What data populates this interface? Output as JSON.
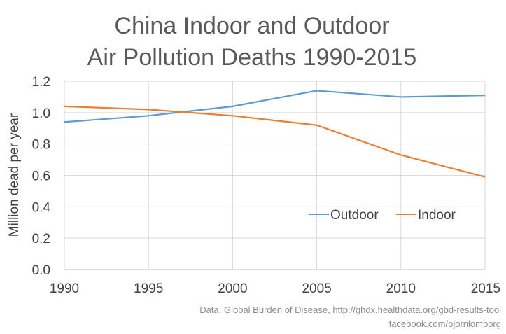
{
  "chart_data": {
    "type": "line",
    "title": [
      "China Indoor and Outdoor",
      "Air Pollution Deaths 1990-2015"
    ],
    "xlabel": "",
    "ylabel": "Million dead per year",
    "x": [
      1990,
      1995,
      2000,
      2005,
      2010,
      2015
    ],
    "x_tick_labels": [
      "1990",
      "1995",
      "2000",
      "2005",
      "2010",
      "2015"
    ],
    "ylim": [
      0,
      1.2
    ],
    "y_tick_labels": [
      "0.0",
      "0.2",
      "0.4",
      "0.6",
      "0.8",
      "1.0",
      "1.2"
    ],
    "y_ticks": [
      0,
      0.2,
      0.4,
      0.6,
      0.8,
      1.0,
      1.2
    ],
    "grid": true,
    "legend_position": "inside-bottom-right",
    "series": [
      {
        "name": "Outdoor",
        "color": "#5b9bd5",
        "values": [
          0.94,
          0.98,
          1.04,
          1.14,
          1.1,
          1.11
        ]
      },
      {
        "name": "Indoor",
        "color": "#ed7d31",
        "values": [
          1.04,
          1.02,
          0.98,
          0.92,
          0.73,
          0.59
        ]
      }
    ],
    "annotations": [
      "Data: Global Burden of Disease, http://ghdx.healthdata.org/gbd-results-tool",
      "facebook.com/bjornlomborg"
    ]
  }
}
